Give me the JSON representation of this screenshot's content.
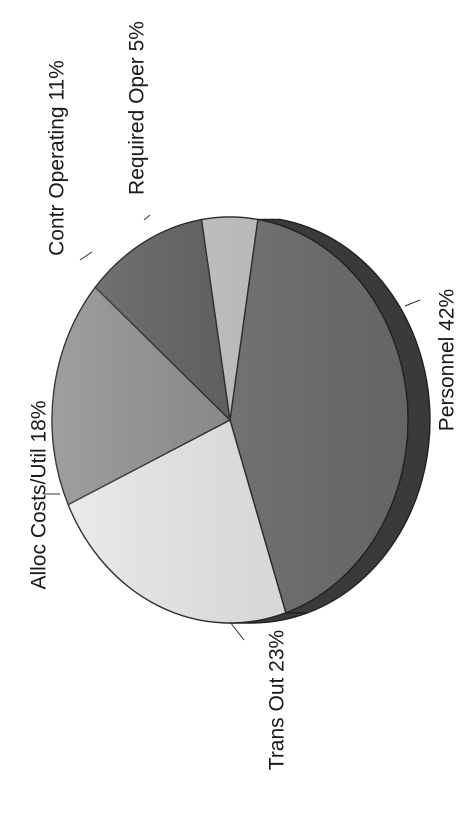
{
  "chart_data": {
    "type": "pie",
    "style": "3d",
    "orientation": "rotated 90 degrees counter-clockwise",
    "slices": [
      {
        "label": "Personnel",
        "percent_label": "42%",
        "value": 42,
        "color": "#707070"
      },
      {
        "label": "Trans Out",
        "percent_label": "23%",
        "value": 23,
        "color": "#e9e9e9"
      },
      {
        "label": "Alloc Costs/Util",
        "percent_label": "18%",
        "value": 18,
        "color": "#8a8a8a"
      },
      {
        "label": "Contr Operating",
        "percent_label": "11%",
        "value": 11,
        "color": "#5a5a5a"
      },
      {
        "label": "Required Oper",
        "percent_label": "5%",
        "value": 5,
        "color": "#c4c4c4"
      }
    ],
    "side_color": "#3a3a3a"
  }
}
